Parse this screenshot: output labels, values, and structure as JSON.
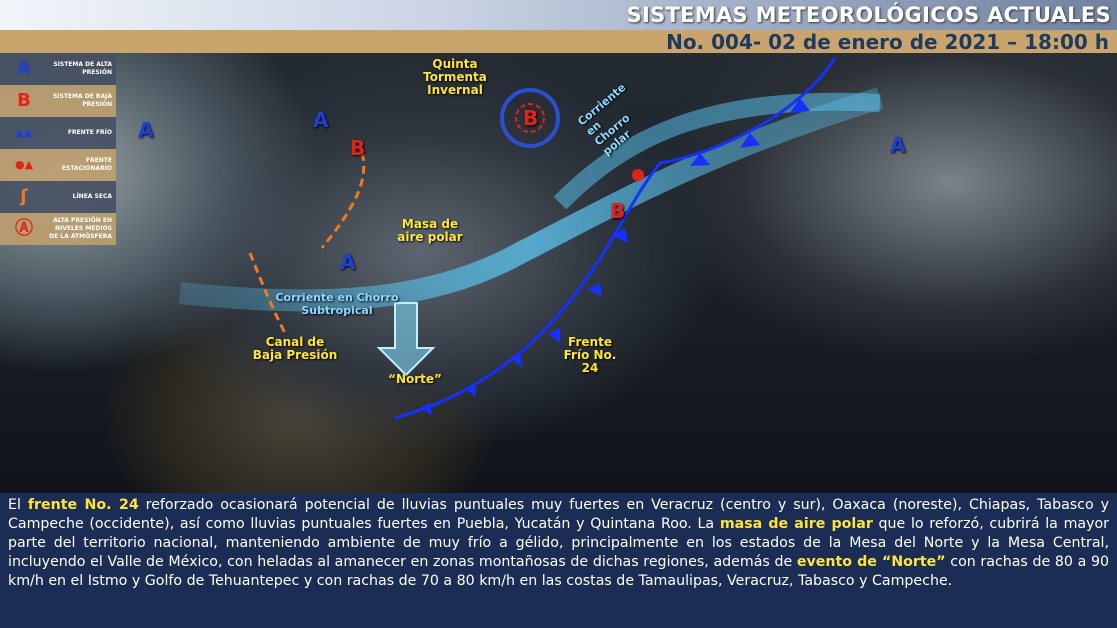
{
  "header": {
    "title": "SISTEMAS METEOROLÓGICOS ACTUALES",
    "subtitle": "No. 004- 02 de enero de 2021 – 18:00 h"
  },
  "legend": [
    {
      "icon": "high-pressure-icon",
      "symbol": "A",
      "label": "SISTEMA DE ALTA PRESIÓN",
      "color": "#1f3fd0"
    },
    {
      "icon": "low-pressure-icon",
      "symbol": "B",
      "label": "SISTEMA DE BAJA PRESIÓN",
      "color": "#e0241b"
    },
    {
      "icon": "cold-front-icon",
      "symbol": "▲▲",
      "label": "FRENTE FRÍO",
      "color": "#1f3fd0"
    },
    {
      "icon": "stationary-front-icon",
      "symbol": "●▲",
      "label": "FRENTE ESTACIONARIO",
      "color": "#e0241b"
    },
    {
      "icon": "dry-line-icon",
      "symbol": "ʃ",
      "label": "LÍNEA SECA",
      "color": "#f07a20"
    },
    {
      "icon": "upper-high-icon",
      "symbol": "Ⓐ",
      "label": "ALTA PRESIÓN EN NIVELES MEDIOS DE LA ATMÓSFERA",
      "color": "#e0241b"
    }
  ],
  "map": {
    "labels": {
      "storm": "Quinta Tormenta Invernal",
      "polar_mass": "Masa de aire polar",
      "trough": "Canal de Baja Presión",
      "norte": "“Norte”",
      "front": "Frente Frío No. 24"
    },
    "jets": {
      "polar": "Corriente en Chorro polar",
      "subtropical": "Corriente en Chorro Subtropical"
    },
    "highs": [
      "A",
      "A",
      "A",
      "A"
    ],
    "lows": [
      "B",
      "B",
      "B"
    ]
  },
  "bottom": {
    "p1": "El ",
    "h1": "frente No. 24",
    "p2": " reforzado ocasionará potencial de lluvias puntuales muy fuertes en Veracruz (centro y sur), Oaxaca (noreste), Chiapas, Tabasco y Campeche (occidente), así como lluvias puntuales fuertes en Puebla, Yucatán y Quintana Roo. La ",
    "h2": "masa de aire polar",
    "p3": " que lo reforzó, cubrirá la mayor parte del territorio nacional, manteniendo ambiente de muy frío a gélido, principalmente en los estados de la Mesa del Norte y la Mesa Central, incluyendo el Valle de México, con heladas al amanecer en zonas montañosas de dichas regiones, además de ",
    "h3": "evento de “Norte”",
    "p4": " con rachas de 80 a 90 km/h en el Istmo y Golfo de Tehuantepec y con rachas de 70 a 80 km/h en las costas de Tamaulipas, Veracruz, Tabasco y Campeche."
  }
}
